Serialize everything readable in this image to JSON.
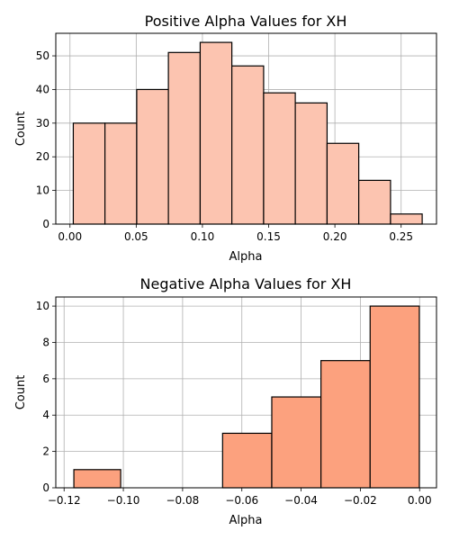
{
  "chart_data": [
    {
      "type": "bar",
      "title": "Positive Alpha Values for XH",
      "xlabel": "Alpha",
      "ylabel": "Count",
      "color": "#fcc4b0",
      "edge_color": "#000000",
      "grid": true,
      "xlim": [
        -0.0107,
        0.2767
      ],
      "ylim": [
        0,
        56.7
      ],
      "xticks": [
        0.0,
        0.05,
        0.1,
        0.15,
        0.2,
        0.25
      ],
      "xtick_labels": [
        "0.00",
        "0.05",
        "0.10",
        "0.15",
        "0.20",
        "0.25"
      ],
      "yticks": [
        0,
        10,
        20,
        30,
        40,
        50
      ],
      "ytick_labels": [
        "0",
        "10",
        "20",
        "30",
        "40",
        "50"
      ],
      "bins": [
        {
          "x0": 0.0025,
          "x1": 0.0264,
          "value": 30
        },
        {
          "x0": 0.0264,
          "x1": 0.0504,
          "value": 30
        },
        {
          "x0": 0.0504,
          "x1": 0.0743,
          "value": 40
        },
        {
          "x0": 0.0743,
          "x1": 0.0983,
          "value": 51
        },
        {
          "x0": 0.0983,
          "x1": 0.1222,
          "value": 54
        },
        {
          "x0": 0.1222,
          "x1": 0.1462,
          "value": 47
        },
        {
          "x0": 0.1462,
          "x1": 0.1701,
          "value": 39
        },
        {
          "x0": 0.1701,
          "x1": 0.1941,
          "value": 36
        },
        {
          "x0": 0.1941,
          "x1": 0.218,
          "value": 24
        },
        {
          "x0": 0.218,
          "x1": 0.242,
          "value": 13
        },
        {
          "x0": 0.242,
          "x1": 0.2659,
          "value": 3
        }
      ]
    },
    {
      "type": "bar",
      "title": "Negative Alpha Values for XH",
      "xlabel": "Alpha",
      "ylabel": "Count",
      "color": "#fca17e",
      "edge_color": "#000000",
      "grid": true,
      "xlim": [
        -0.1228,
        0.0057
      ],
      "ylim": [
        0,
        10.5
      ],
      "xticks": [
        -0.12,
        -0.1,
        -0.08,
        -0.06,
        -0.04,
        -0.02,
        0.0
      ],
      "xtick_labels": [
        "−0.12",
        "−0.10",
        "−0.08",
        "−0.06",
        "−0.04",
        "−0.02",
        "0.00"
      ],
      "yticks": [
        0,
        2,
        4,
        6,
        8,
        10
      ],
      "ytick_labels": [
        "0",
        "2",
        "4",
        "6",
        "8",
        "10"
      ],
      "bins": [
        {
          "x0": -0.1167,
          "x1": -0.1009,
          "value": 1
        },
        {
          "x0": -0.1009,
          "x1": -0.0831,
          "value": 0
        },
        {
          "x0": -0.0831,
          "x1": -0.0665,
          "value": 0
        },
        {
          "x0": -0.0665,
          "x1": -0.0499,
          "value": 3
        },
        {
          "x0": -0.0499,
          "x1": -0.0333,
          "value": 5
        },
        {
          "x0": -0.0333,
          "x1": -0.0167,
          "value": 7
        },
        {
          "x0": -0.0167,
          "x1": -0.0001,
          "value": 10
        }
      ]
    }
  ]
}
